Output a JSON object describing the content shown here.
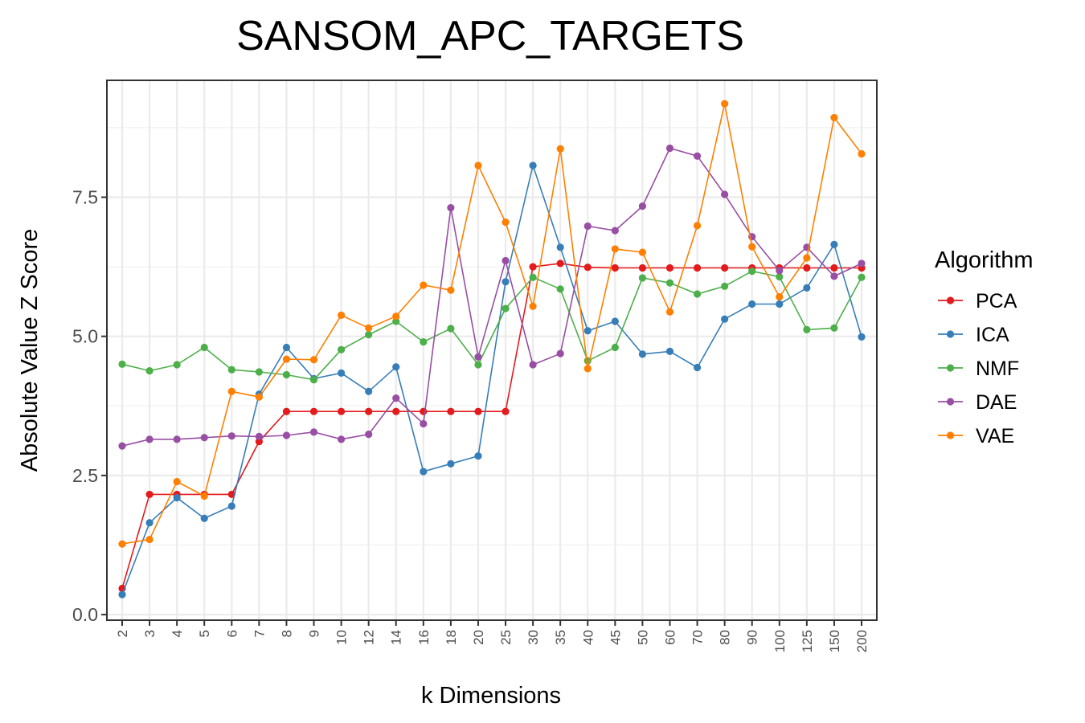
{
  "chart_data": {
    "type": "line",
    "title": "SANSOM_APC_TARGETS",
    "xlabel": "k Dimensions",
    "ylabel": "Absolute Value Z Score",
    "categories": [
      "2",
      "3",
      "4",
      "5",
      "6",
      "7",
      "8",
      "9",
      "10",
      "12",
      "14",
      "16",
      "18",
      "20",
      "25",
      "30",
      "35",
      "40",
      "45",
      "50",
      "60",
      "70",
      "80",
      "90",
      "100",
      "125",
      "150",
      "200"
    ],
    "ylim": [
      -0.1,
      9.6
    ],
    "yticks": [
      0.0,
      2.5,
      5.0,
      7.5
    ],
    "ytick_labels": [
      "0.0",
      "2.5",
      "5.0",
      "7.5"
    ],
    "grid": true,
    "legend": {
      "title": "Algorithm",
      "position": "right"
    },
    "series": [
      {
        "name": "PCA",
        "color": "#E41A1C",
        "values": [
          0.47,
          2.16,
          2.16,
          2.16,
          2.16,
          3.11,
          3.65,
          3.65,
          3.65,
          3.65,
          3.65,
          3.65,
          3.65,
          3.65,
          3.65,
          6.25,
          6.31,
          6.24,
          6.23,
          6.23,
          6.23,
          6.23,
          6.23,
          6.23,
          6.23,
          6.23,
          6.23,
          6.23
        ]
      },
      {
        "name": "ICA",
        "color": "#377EB8",
        "values": [
          0.36,
          1.65,
          2.1,
          1.73,
          1.95,
          3.96,
          4.8,
          4.24,
          4.34,
          4.01,
          4.45,
          2.57,
          2.71,
          2.85,
          5.98,
          8.07,
          6.6,
          5.1,
          5.27,
          4.68,
          4.73,
          4.44,
          5.31,
          5.58,
          5.58,
          5.87,
          6.65,
          4.99
        ]
      },
      {
        "name": "NMF",
        "color": "#4DAF4A",
        "values": [
          4.5,
          4.38,
          4.49,
          4.8,
          4.4,
          4.36,
          4.31,
          4.22,
          4.76,
          5.03,
          5.27,
          4.9,
          5.14,
          4.49,
          5.5,
          6.06,
          5.85,
          4.56,
          4.8,
          6.05,
          5.96,
          5.76,
          5.9,
          6.17,
          6.07,
          5.12,
          5.15,
          6.06
        ]
      },
      {
        "name": "DAE",
        "color": "#984EA3",
        "values": [
          3.03,
          3.15,
          3.15,
          3.18,
          3.21,
          3.2,
          3.22,
          3.28,
          3.15,
          3.24,
          3.89,
          3.43,
          7.31,
          4.63,
          6.36,
          4.49,
          4.69,
          6.98,
          6.9,
          7.34,
          8.38,
          8.24,
          7.55,
          6.79,
          6.18,
          6.6,
          6.08,
          6.31
        ]
      },
      {
        "name": "VAE",
        "color": "#FF7F00",
        "values": [
          1.27,
          1.35,
          2.39,
          2.13,
          4.01,
          3.91,
          4.59,
          4.58,
          5.38,
          5.15,
          5.36,
          5.92,
          5.83,
          8.07,
          7.05,
          5.54,
          8.37,
          4.42,
          6.57,
          6.51,
          5.44,
          6.99,
          9.18,
          6.61,
          5.71,
          6.41,
          8.93,
          8.28
        ]
      }
    ]
  }
}
